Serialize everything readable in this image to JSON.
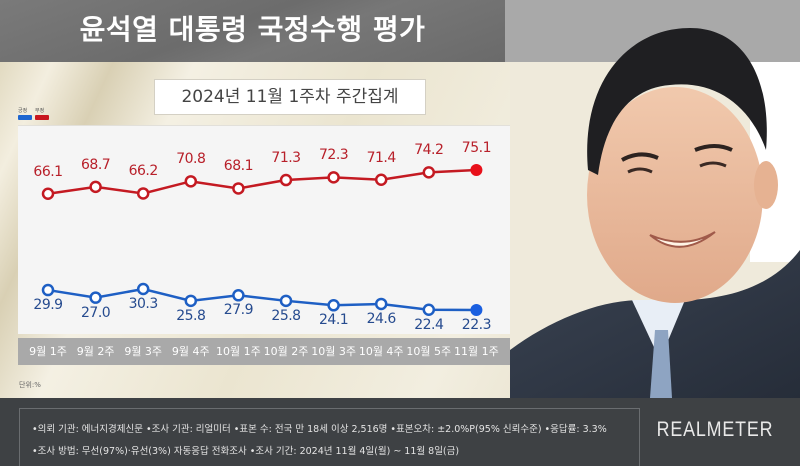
{
  "header": {
    "title": "윤석열 대통령 국정수행 평가"
  },
  "subtitle": "2024년 11월 1주차 주간집계",
  "legend": [
    {
      "label": "긍정",
      "color": "#1e66d0"
    },
    {
      "label": "부정",
      "color": "#c8161e"
    }
  ],
  "unit_label": "단위:%",
  "colors": {
    "positive": "#1e5fc4",
    "negative": "#c41a22",
    "positive_last": "#1a5fe0",
    "negative_last": "#e8101a",
    "axis_band": "#a9a9a9",
    "footer_bg": "#3e4144"
  },
  "chart_data": {
    "type": "line",
    "title": "윤석열 대통령 국정수행 평가",
    "subtitle": "2024년 11월 1주차 주간집계",
    "xlabel": "",
    "ylabel": "단위:%",
    "grid": false,
    "legend_position": "top-left",
    "categories": [
      "9월 1주",
      "9월 2주",
      "9월 3주",
      "9월 4주",
      "10월 1주",
      "10월 2주",
      "10월 3주",
      "10월 4주",
      "10월 5주",
      "11월 1주"
    ],
    "series": [
      {
        "name": "부정",
        "color": "#c41a22",
        "values": [
          66.1,
          68.7,
          66.2,
          70.8,
          68.1,
          71.3,
          72.3,
          71.4,
          74.2,
          75.1
        ]
      },
      {
        "name": "긍정",
        "color": "#1e5fc4",
        "values": [
          29.9,
          27.0,
          30.3,
          25.8,
          27.9,
          25.8,
          24.1,
          24.6,
          22.4,
          22.3
        ]
      }
    ]
  },
  "footer": {
    "line1": "•의뢰 기관: 에너지경제신문 •조사 기관: 리얼미터 •표본 수: 전국 만 18세 이상 2,516명 •표본오차: ±2.0%P(95% 신뢰수준) •응답률: 3.3%",
    "line2": "•조사 방법: 무선(97%)·유선(3%) 자동응답 전화조사 •조사 기간: 2024년 11월 4일(월) ~ 11월 8일(금)",
    "brand": "REALMETER"
  },
  "photo": {
    "alt": "윤석열 대통령 사진"
  }
}
